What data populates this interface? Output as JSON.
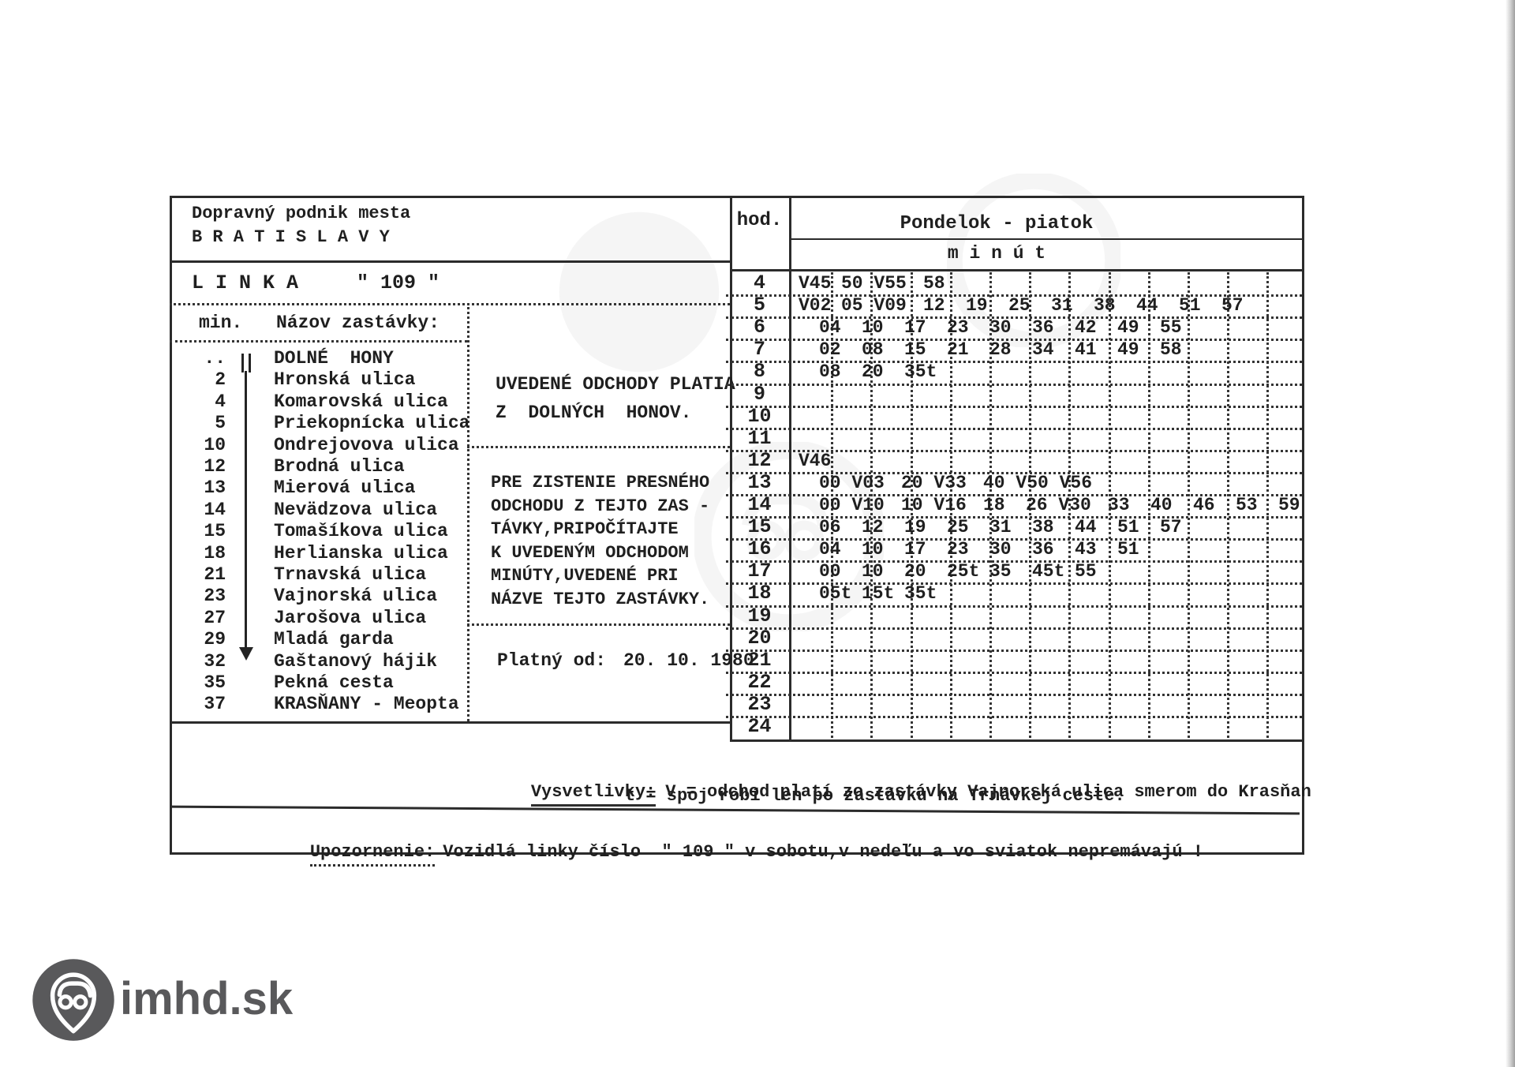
{
  "header": {
    "org_line1": "Dopravný podnik mesta",
    "org_line2": "B R A T I S L A V Y",
    "line_label": "L I N K A",
    "line_number": "\" 109 \""
  },
  "stops": {
    "col_min": "min.",
    "col_name": "Názov zastávky:",
    "items": [
      {
        "min": "..",
        "name": "DOLNÉ  HONY"
      },
      {
        "min": "2",
        "name": "Hronská ulica"
      },
      {
        "min": "4",
        "name": "Komarovská ulica"
      },
      {
        "min": "5",
        "name": "Priekopnícka ulica"
      },
      {
        "min": "10",
        "name": "Ondrejovova ulica"
      },
      {
        "min": "12",
        "name": "Brodná ulica"
      },
      {
        "min": "13",
        "name": "Mierová ulica"
      },
      {
        "min": "14",
        "name": "Nevädzova ulica"
      },
      {
        "min": "15",
        "name": "Tomašíkova ulica"
      },
      {
        "min": "18",
        "name": "Herlianska ulica"
      },
      {
        "min": "21",
        "name": "Trnavská ulica"
      },
      {
        "min": "23",
        "name": "Vajnorská ulica"
      },
      {
        "min": "27",
        "name": "Jarošova ulica"
      },
      {
        "min": "29",
        "name": "Mladá garda"
      },
      {
        "min": "32",
        "name": "Gaštanový hájik"
      },
      {
        "min": "35",
        "name": "Pekná cesta"
      },
      {
        "min": "37",
        "name": "KRASŇANY - Meopta"
      }
    ]
  },
  "info": {
    "note1_line1": "UVEDENÉ ODCHODY PLATIA",
    "note1_line2": "Z  DOLNÝCH  HONOV.",
    "note2_lines": [
      "PRE ZISTENIE PRESNÉHO",
      "ODCHODU Z TEJTO ZAS -",
      "TÁVKY,PRIPOČÍTAJTE",
      "K UVEDENÝM ODCHODOM",
      "MINÚTY,UVEDENÉ PRI",
      "NÁZVE TEJTO ZASTÁVKY."
    ],
    "valid_label": "Platný od:",
    "valid_date": "20. 10. 1980"
  },
  "timetable": {
    "hour_header": "hod.",
    "day_header": "Pondelok - piatok",
    "minutes_header": "m i n ú t",
    "rows": [
      {
        "hour": "4",
        "cells": [
          "V45",
          "50 V55",
          "58"
        ]
      },
      {
        "hour": "5",
        "cells": [
          "V02",
          "05 V09",
          "12",
          "19",
          "25",
          "31",
          "38",
          "44",
          "51",
          "57"
        ]
      },
      {
        "hour": "6",
        "cells": [
          "04",
          "10",
          "17",
          "23",
          "30",
          "36",
          "42",
          "49",
          "55"
        ]
      },
      {
        "hour": "7",
        "cells": [
          "02",
          "08",
          "15",
          "21",
          "28",
          "34",
          "41",
          "49",
          "58"
        ]
      },
      {
        "hour": "8",
        "cells": [
          "08",
          "20",
          "35t"
        ]
      },
      {
        "hour": "9",
        "cells": []
      },
      {
        "hour": "10",
        "cells": []
      },
      {
        "hour": "11",
        "cells": []
      },
      {
        "hour": "12",
        "cells": [
          "V46"
        ]
      },
      {
        "hour": "13",
        "cells": [
          "00 V03",
          "20 V33",
          "40 V50 V56"
        ]
      },
      {
        "hour": "14",
        "cells": [
          "00 V10",
          "10 V16",
          "18",
          "26 V30",
          "33",
          "40",
          "46",
          "53",
          "59"
        ]
      },
      {
        "hour": "15",
        "cells": [
          "06",
          "12",
          "19",
          "25",
          "31",
          "38",
          "44",
          "51",
          "57"
        ]
      },
      {
        "hour": "16",
        "cells": [
          "04",
          "10",
          "17",
          "23",
          "30",
          "36",
          "43",
          "51"
        ]
      },
      {
        "hour": "17",
        "cells": [
          "00",
          "10",
          "20",
          "25t",
          "35",
          "45t",
          "55"
        ]
      },
      {
        "hour": "18",
        "cells": [
          "05t",
          "15t",
          "35t"
        ]
      },
      {
        "hour": "19",
        "cells": []
      },
      {
        "hour": "20",
        "cells": []
      },
      {
        "hour": "21",
        "cells": []
      },
      {
        "hour": "22",
        "cells": []
      },
      {
        "hour": "23",
        "cells": []
      },
      {
        "hour": "24",
        "cells": []
      }
    ]
  },
  "legend": {
    "label": "Vysvetlivky:",
    "v_line": "V = odchod platí zo zastávky Vajnorská ulica smerom do Krasňan",
    "t_line": "t = spoj robí len po zastávku na Trnávkej ceste.",
    "notice_label": "Upozornenie:",
    "notice_text": "Vozidlá linky číslo  \" 109 \" v sobotu,v nedeľu a vo sviatok nepremávajú !"
  },
  "footer": {
    "logo_text": "imhd.sk"
  }
}
